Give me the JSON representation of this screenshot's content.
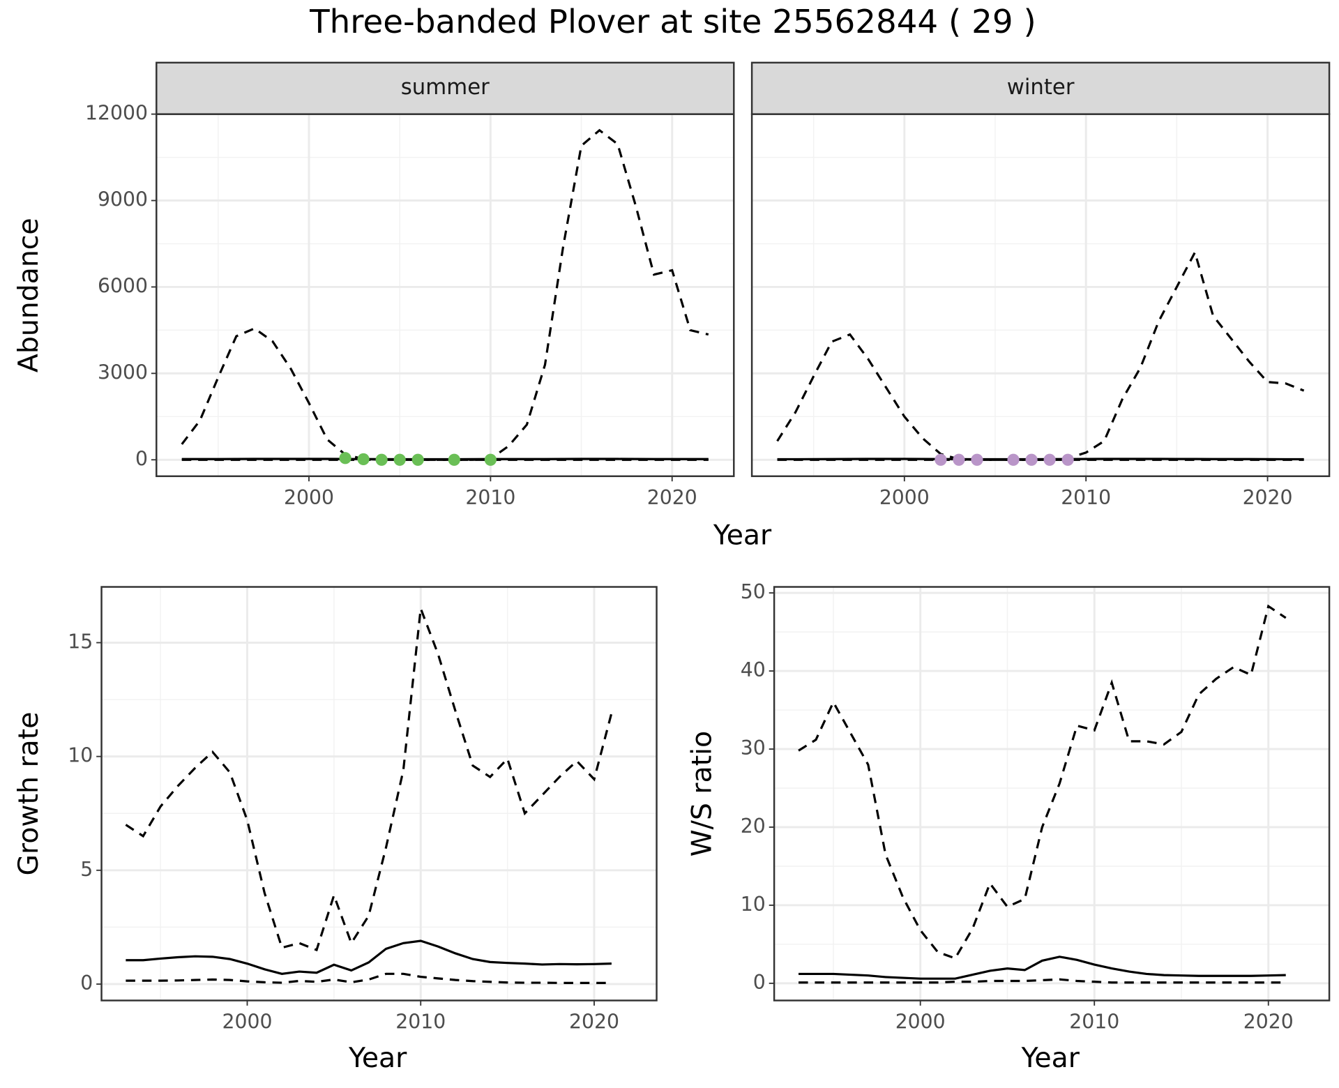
{
  "title": "Three-banded Plover at site 25562844 ( 29 )",
  "chart_data": [
    {
      "type": "line",
      "facet": "summer",
      "ylabel": "Abundance",
      "xlabel": "Year",
      "xlim": [
        1991.6,
        2023.4
      ],
      "ylim": [
        -570,
        12000
      ],
      "xticks": [
        2000,
        2010,
        2020
      ],
      "yticks": [
        0,
        3000,
        6000,
        9000,
        12000
      ],
      "minor_xticks": [
        1995,
        2005,
        2015
      ],
      "minor_yticks": [
        1500,
        4500,
        7500,
        10500
      ],
      "grid": true,
      "show_ytick_labels": true,
      "x": [
        1993,
        1994,
        1995,
        1996,
        1997,
        1998,
        1999,
        2000,
        2001,
        2002,
        2003,
        2004,
        2005,
        2006,
        2007,
        2008,
        2009,
        2010,
        2011,
        2012,
        2013,
        2014,
        2015,
        2016,
        2017,
        2018,
        2019,
        2020,
        2021,
        2022
      ],
      "series": [
        {
          "style": "line",
          "dash": true,
          "color": "#000000",
          "values": [
            540,
            1370,
            2860,
            4290,
            4560,
            4110,
            3160,
            1970,
            710,
            180,
            30,
            0,
            0,
            0,
            0,
            0,
            0,
            30,
            480,
            1220,
            3300,
            7400,
            10900,
            11440,
            10960,
            8810,
            6430,
            6580,
            4500,
            4350
          ]
        },
        {
          "style": "line",
          "dash": false,
          "color": "#000000",
          "values": [
            25,
            25,
            25,
            28,
            30,
            30,
            30,
            30,
            30,
            28,
            25,
            22,
            20,
            20,
            20,
            20,
            22,
            25,
            25,
            25,
            25,
            28,
            30,
            30,
            30,
            28,
            25,
            25,
            25,
            25
          ]
        },
        {
          "style": "line",
          "dash": true,
          "color": "#000000",
          "values": [
            0,
            0,
            0,
            0,
            0,
            0,
            0,
            0,
            0,
            0,
            0,
            0,
            0,
            0,
            0,
            0,
            0,
            0,
            0,
            0,
            0,
            0,
            0,
            0,
            0,
            0,
            0,
            0,
            0,
            0
          ]
        },
        {
          "style": "points",
          "color": "#6abf56",
          "x": [
            2002,
            2003,
            2004,
            2005,
            2006,
            2008,
            2010
          ],
          "values": [
            60,
            20,
            0,
            0,
            0,
            0,
            0
          ]
        }
      ]
    },
    {
      "type": "line",
      "facet": "winter",
      "xlim": [
        1991.6,
        2023.4
      ],
      "ylim": [
        -570,
        12000
      ],
      "xticks": [
        2000,
        2010,
        2020
      ],
      "yticks": [
        0,
        3000,
        6000,
        9000,
        12000
      ],
      "minor_xticks": [
        1995,
        2005,
        2015
      ],
      "minor_yticks": [
        1500,
        4500,
        7500,
        10500
      ],
      "grid": true,
      "show_ytick_labels": false,
      "x": [
        1993,
        1994,
        1995,
        1996,
        1997,
        1998,
        1999,
        2000,
        2001,
        2002,
        2003,
        2004,
        2005,
        2006,
        2007,
        2008,
        2009,
        2010,
        2011,
        2012,
        2013,
        2014,
        2015,
        2016,
        2017,
        2018,
        2019,
        2020,
        2021,
        2022
      ],
      "series": [
        {
          "style": "line",
          "dash": true,
          "color": "#000000",
          "values": [
            650,
            1650,
            2900,
            4100,
            4350,
            3500,
            2500,
            1500,
            750,
            200,
            20,
            0,
            0,
            0,
            0,
            0,
            50,
            250,
            650,
            2100,
            3200,
            4800,
            6000,
            7200,
            5000,
            4200,
            3400,
            2700,
            2650,
            2400
          ]
        },
        {
          "style": "line",
          "dash": false,
          "color": "#000000",
          "values": [
            20,
            20,
            22,
            25,
            28,
            30,
            30,
            30,
            28,
            25,
            22,
            20,
            20,
            20,
            20,
            22,
            25,
            28,
            30,
            30,
            30,
            30,
            28,
            28,
            25,
            25,
            25,
            22,
            20,
            20
          ]
        },
        {
          "style": "line",
          "dash": true,
          "color": "#000000",
          "values": [
            0,
            0,
            0,
            0,
            0,
            0,
            0,
            0,
            0,
            0,
            0,
            0,
            0,
            0,
            0,
            0,
            0,
            0,
            0,
            0,
            0,
            0,
            0,
            0,
            0,
            0,
            0,
            0,
            0,
            0
          ]
        },
        {
          "style": "points",
          "color": "#b995c8",
          "x": [
            2002,
            2003,
            2004,
            2006,
            2007,
            2008,
            2009
          ],
          "values": [
            0,
            0,
            0,
            0,
            0,
            0,
            0
          ]
        }
      ]
    },
    {
      "type": "line",
      "ylabel": "Growth rate",
      "xlabel": "Year",
      "xlim": [
        1991.6,
        2023.6
      ],
      "ylim": [
        -0.72,
        17.45
      ],
      "xticks": [
        2000,
        2010,
        2020
      ],
      "yticks": [
        0,
        5,
        10,
        15
      ],
      "minor_xticks": [
        1995,
        2005,
        2015
      ],
      "minor_yticks": [
        2.5,
        7.5,
        12.5
      ],
      "grid": true,
      "show_ytick_labels": true,
      "x": [
        1993,
        1994,
        1995,
        1996,
        1997,
        1998,
        1999,
        2000,
        2001,
        2002,
        2003,
        2004,
        2005,
        2006,
        2007,
        2008,
        2009,
        2010,
        2011,
        2012,
        2013,
        2014,
        2015,
        2016,
        2017,
        2018,
        2019,
        2020,
        2021
      ],
      "series": [
        {
          "style": "line",
          "dash": true,
          "color": "#000000",
          "values": [
            7.0,
            6.5,
            7.8,
            8.7,
            9.5,
            10.2,
            9.3,
            7.2,
            4.0,
            1.6,
            1.8,
            1.5,
            3.9,
            1.8,
            3.0,
            6.0,
            9.4,
            16.5,
            14.5,
            12.0,
            9.6,
            9.1,
            9.9,
            7.5,
            8.3,
            9.1,
            9.8,
            9.0,
            11.9
          ]
        },
        {
          "style": "line",
          "dash": false,
          "color": "#000000",
          "values": [
            1.05,
            1.05,
            1.12,
            1.18,
            1.22,
            1.2,
            1.1,
            0.9,
            0.65,
            0.45,
            0.55,
            0.5,
            0.85,
            0.6,
            0.95,
            1.55,
            1.8,
            1.9,
            1.65,
            1.35,
            1.1,
            0.97,
            0.93,
            0.9,
            0.86,
            0.88,
            0.87,
            0.88,
            0.9
          ]
        },
        {
          "style": "line",
          "dash": true,
          "color": "#000000",
          "values": [
            0.15,
            0.15,
            0.15,
            0.16,
            0.18,
            0.2,
            0.18,
            0.12,
            0.08,
            0.06,
            0.14,
            0.1,
            0.2,
            0.08,
            0.2,
            0.45,
            0.45,
            0.32,
            0.25,
            0.18,
            0.13,
            0.1,
            0.07,
            0.06,
            0.06,
            0.05,
            0.05,
            0.05,
            0.05
          ]
        }
      ]
    },
    {
      "type": "line",
      "ylabel": "W/S ratio",
      "xlabel": "Year",
      "xlim": [
        1991.6,
        2023.5
      ],
      "ylim": [
        -2.2,
        50.77
      ],
      "xticks": [
        2000,
        2010,
        2020
      ],
      "yticks": [
        0,
        10,
        20,
        30,
        40,
        50
      ],
      "minor_xticks": [
        1995,
        2005,
        2015
      ],
      "minor_yticks": [
        5,
        15,
        25,
        35,
        45
      ],
      "grid": true,
      "show_ytick_labels": true,
      "x": [
        1993,
        1994,
        1995,
        1996,
        1997,
        1998,
        1999,
        2000,
        2001,
        2002,
        2003,
        2004,
        2005,
        2006,
        2007,
        2008,
        2009,
        2010,
        2011,
        2012,
        2013,
        2014,
        2015,
        2016,
        2017,
        2018,
        2019,
        2020,
        2021
      ],
      "series": [
        {
          "style": "line",
          "dash": true,
          "color": "#000000",
          "values": [
            29.8,
            31.2,
            36.0,
            32.0,
            28.0,
            16.5,
            11.0,
            6.8,
            4.0,
            3.2,
            7.0,
            12.8,
            9.8,
            10.8,
            20.0,
            25.6,
            33.0,
            32.4,
            38.5,
            31.0,
            31.0,
            30.6,
            32.2,
            37.0,
            39.0,
            40.5,
            39.5,
            48.3,
            46.8
          ]
        },
        {
          "style": "line",
          "dash": false,
          "color": "#000000",
          "values": [
            1.2,
            1.2,
            1.2,
            1.1,
            1.0,
            0.8,
            0.7,
            0.6,
            0.6,
            0.6,
            1.1,
            1.6,
            1.9,
            1.7,
            2.9,
            3.4,
            3.0,
            2.4,
            1.9,
            1.5,
            1.2,
            1.05,
            1.0,
            0.95,
            0.95,
            0.95,
            0.95,
            1.0,
            1.05
          ]
        },
        {
          "style": "line",
          "dash": true,
          "color": "#000000",
          "values": [
            0.1,
            0.1,
            0.1,
            0.1,
            0.1,
            0.1,
            0.1,
            0.1,
            0.1,
            0.2,
            0.2,
            0.3,
            0.3,
            0.3,
            0.4,
            0.5,
            0.3,
            0.2,
            0.1,
            0.1,
            0.1,
            0.1,
            0.1,
            0.1,
            0.1,
            0.1,
            0.1,
            0.1,
            0.1
          ]
        }
      ]
    }
  ]
}
